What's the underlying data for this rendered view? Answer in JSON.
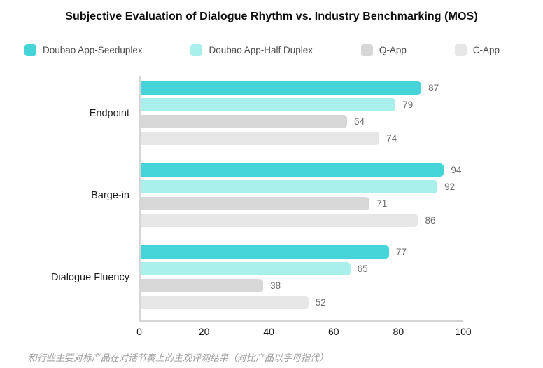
{
  "title": "Subjective Evaluation of Dialogue Rhythm vs. Industry Benchmarking (MOS)",
  "footnote": "和行业主要对标产品在对话节奏上的主观评测结果（对比产品以字母指代）",
  "colors": {
    "seeduplex": "#45d4d8",
    "half_duplex": "#a9efeb",
    "q_app": "#d7d7d7",
    "c_app": "#e6e6e6",
    "axis_line": "#d5d5d5",
    "value_label": "#6d6d6d"
  },
  "chart_data": {
    "type": "bar",
    "orientation": "horizontal",
    "title": "Subjective Evaluation of Dialogue Rhythm vs. Industry Benchmarking (MOS)",
    "categories": [
      "Endpoint",
      "Barge-in",
      "Dialogue Fluency"
    ],
    "series": [
      {
        "name": "Doubao App-Seeduplex",
        "color": "#45d4d8",
        "values": [
          87,
          94,
          77
        ]
      },
      {
        "name": "Doubao App-Half Duplex",
        "color": "#a9efeb",
        "values": [
          79,
          92,
          65
        ]
      },
      {
        "name": "Q-App",
        "color": "#d7d7d7",
        "values": [
          64,
          71,
          38
        ]
      },
      {
        "name": "C-App",
        "color": "#e6e6e6",
        "values": [
          74,
          86,
          52
        ]
      }
    ],
    "xlabel": "",
    "ylabel": "",
    "xlim": [
      0,
      100
    ],
    "xticks": [
      0,
      20,
      40,
      60,
      80,
      100
    ],
    "grid": false,
    "legend_position": "top",
    "value_labels": true
  }
}
